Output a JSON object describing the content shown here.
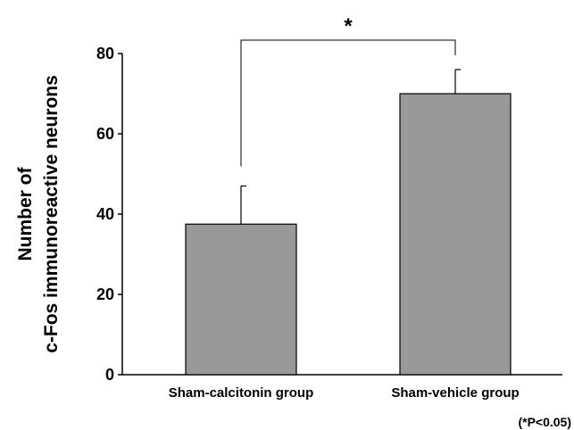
{
  "chart_data": {
    "type": "bar",
    "categories": [
      "Sham-calcitonin group",
      "Sham-vehicle group"
    ],
    "values": [
      37.5,
      70.0
    ],
    "error_upper": [
      47.0,
      76.0
    ],
    "ylabel_line1": "Number of",
    "ylabel_line2": "c-Fos immunoreactive neurons",
    "ylim": [
      0,
      80
    ],
    "yticks": [
      "0",
      "20",
      "40",
      "60",
      "80"
    ],
    "grid": false,
    "bar_color": "#999999",
    "significance_marker": "*",
    "footnote": "(*P<0.05)"
  }
}
